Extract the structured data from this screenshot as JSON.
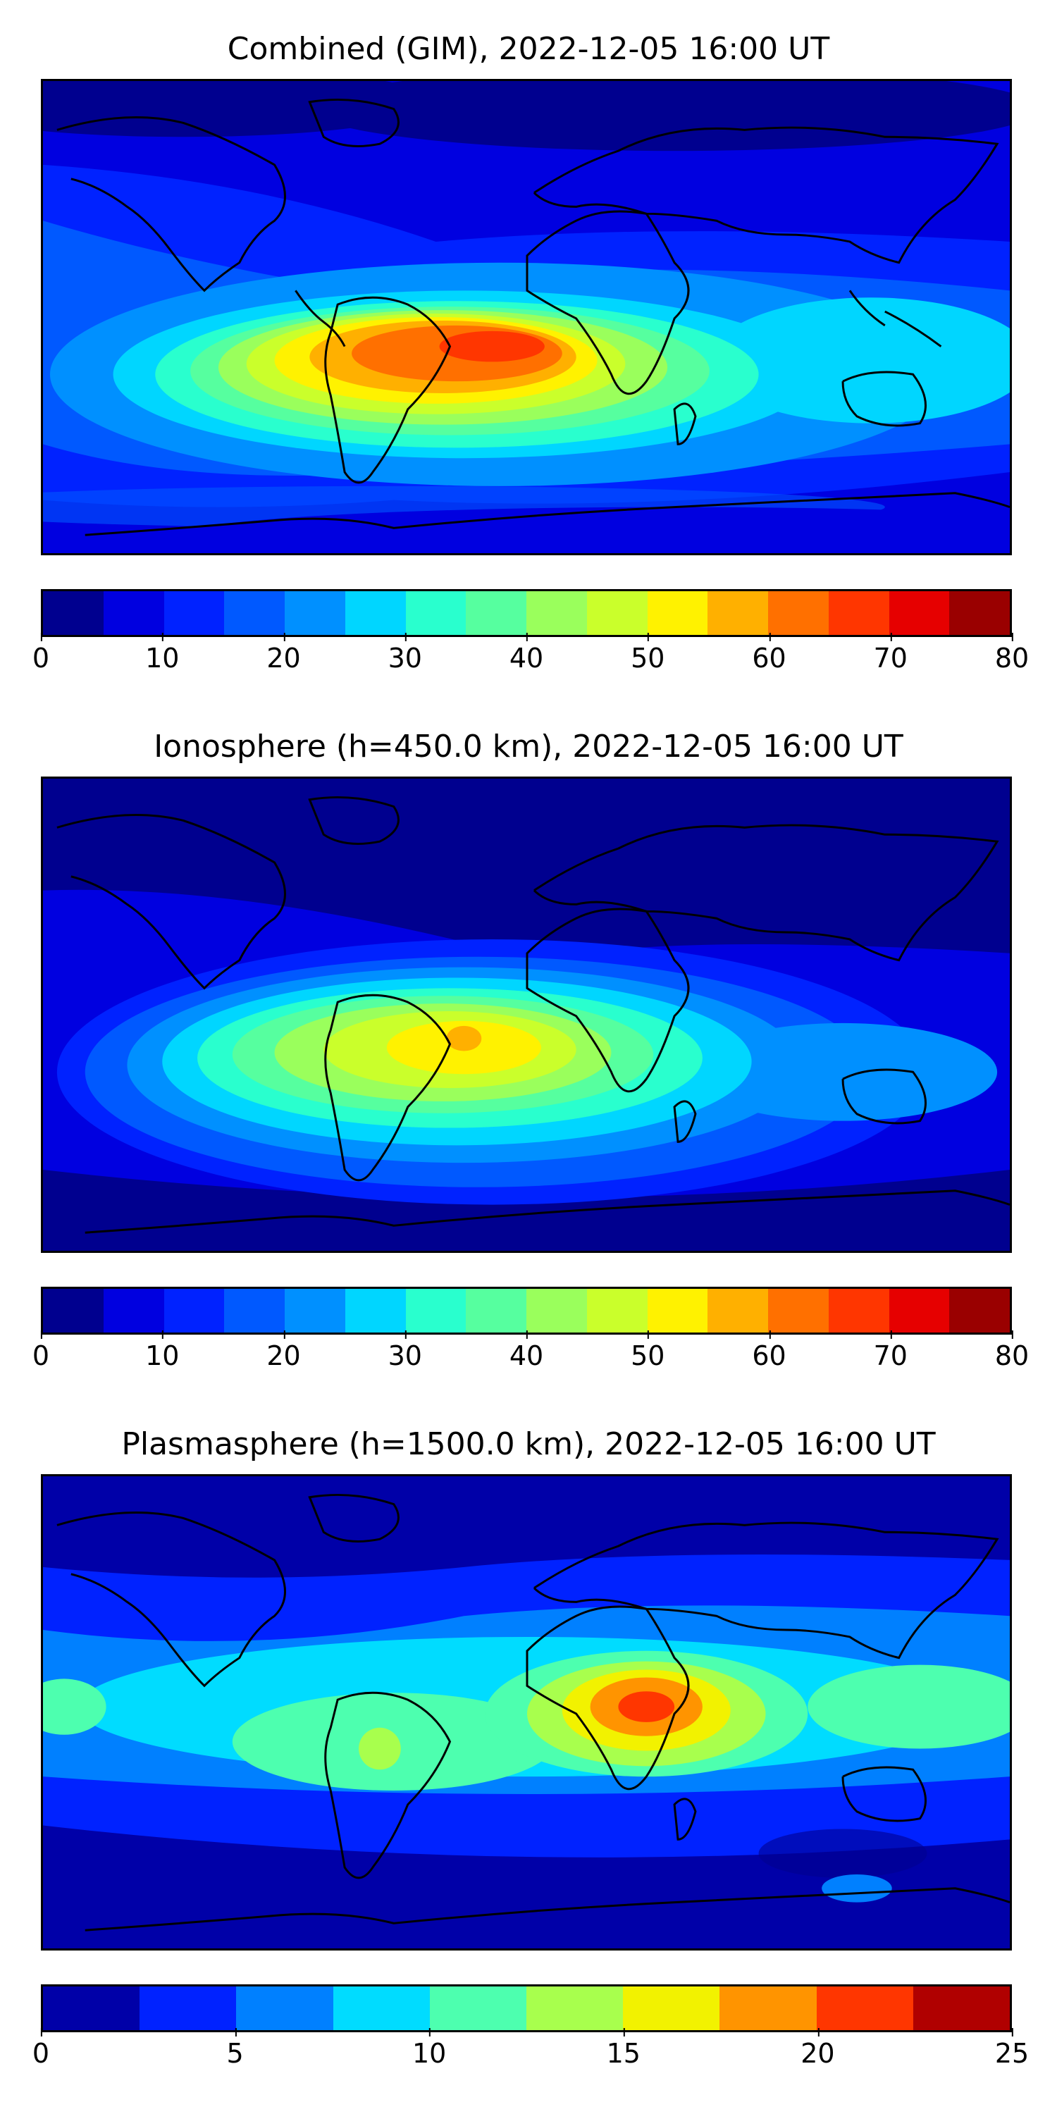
{
  "panels": [
    {
      "title": "Combined (GIM), 2022-12-05 16:00 UT",
      "colorbar": {
        "ticks": [
          "0",
          "10",
          "20",
          "30",
          "40",
          "50",
          "60",
          "70",
          "80"
        ],
        "levels": 16,
        "colors": [
          "#00008f",
          "#0000e0",
          "#0022ff",
          "#0059ff",
          "#0090ff",
          "#00d6ff",
          "#29ffce",
          "#56ff9f",
          "#9aff5c",
          "#caff2b",
          "#fff200",
          "#ffb000",
          "#ff7000",
          "#ff3600",
          "#e60000",
          "#9a0000"
        ]
      }
    },
    {
      "title": "Ionosphere  (h=450.0 km), 2022-12-05 16:00 UT",
      "colorbar": {
        "ticks": [
          "0",
          "10",
          "20",
          "30",
          "40",
          "50",
          "60",
          "70",
          "80"
        ],
        "levels": 16,
        "colors": [
          "#00008f",
          "#0000e0",
          "#0022ff",
          "#0059ff",
          "#0090ff",
          "#00d6ff",
          "#29ffce",
          "#56ff9f",
          "#9aff5c",
          "#caff2b",
          "#fff200",
          "#ffb000",
          "#ff7000",
          "#ff3600",
          "#e60000",
          "#9a0000"
        ]
      }
    },
    {
      "title": "Plasmasphere (h=1500.0 km), 2022-12-05 16:00 UT",
      "colorbar": {
        "ticks": [
          "0",
          "5",
          "10",
          "15",
          "20",
          "25"
        ],
        "levels": 10,
        "colors": [
          "#0000a8",
          "#0022ff",
          "#0080ff",
          "#00dcff",
          "#4dffaf",
          "#a8ff4d",
          "#f2f200",
          "#ff9400",
          "#ff3600",
          "#b00000"
        ]
      }
    }
  ]
}
